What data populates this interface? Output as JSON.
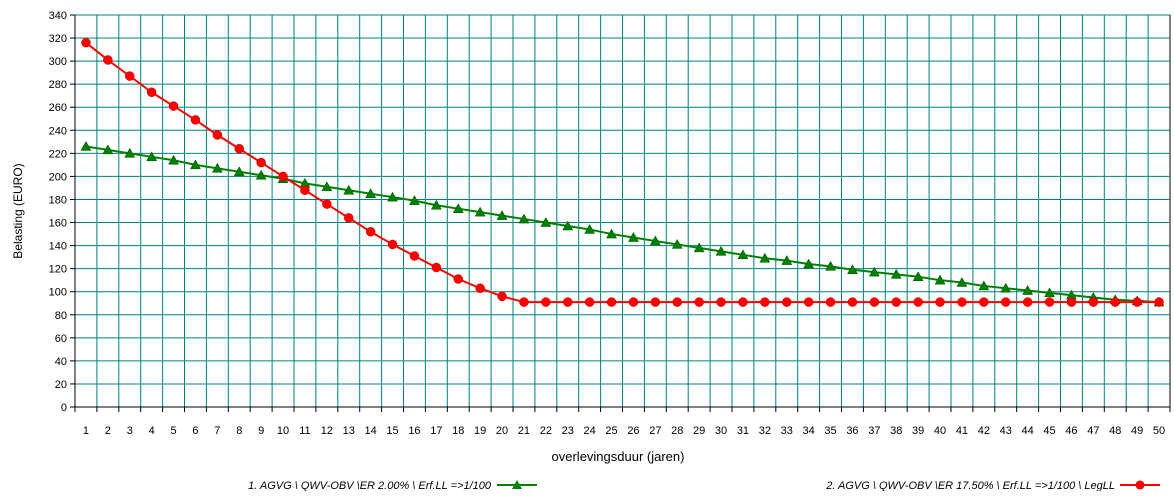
{
  "chart_data": {
    "type": "line",
    "xlabel": "overlevingsduur (jaren)",
    "ylabel": "Belasting (EURO)",
    "xlim": [
      0,
      50
    ],
    "ylim": [
      0,
      340
    ],
    "yticks": [
      0,
      20,
      40,
      60,
      80,
      100,
      120,
      140,
      160,
      180,
      200,
      220,
      240,
      260,
      280,
      300,
      320,
      340
    ],
    "xticks": [
      1,
      2,
      3,
      4,
      5,
      6,
      7,
      8,
      9,
      10,
      11,
      12,
      13,
      14,
      15,
      16,
      17,
      18,
      19,
      20,
      21,
      22,
      23,
      24,
      25,
      26,
      27,
      28,
      29,
      30,
      31,
      32,
      33,
      34,
      35,
      36,
      37,
      38,
      39,
      40,
      41,
      42,
      43,
      44,
      45,
      46,
      47,
      48,
      49,
      50
    ],
    "grid": true,
    "legend_position": "bottom",
    "background": "#ffffff",
    "grid_color": "#008080",
    "series": [
      {
        "name": "1. AGVG \\ QWV-OBV \\ER 2.00% \\ Erf.LL =>1/100",
        "marker": "triangle",
        "color": "#008000",
        "x": [
          1,
          2,
          3,
          4,
          5,
          6,
          7,
          8,
          9,
          10,
          11,
          12,
          13,
          14,
          15,
          16,
          17,
          18,
          19,
          20,
          21,
          22,
          23,
          24,
          25,
          26,
          27,
          28,
          29,
          30,
          31,
          32,
          33,
          34,
          35,
          36,
          37,
          38,
          39,
          40,
          41,
          42,
          43,
          44,
          45,
          46,
          47,
          48,
          49,
          50
        ],
        "values": [
          226,
          223,
          220,
          217,
          214,
          210,
          207,
          204,
          201,
          198,
          194,
          191,
          188,
          185,
          182,
          179,
          175,
          172,
          169,
          166,
          163,
          160,
          157,
          154,
          150,
          147,
          144,
          141,
          138,
          135,
          132,
          129,
          127,
          124,
          122,
          119,
          117,
          115,
          113,
          110,
          108,
          105,
          103,
          101,
          99,
          97,
          95,
          93,
          92,
          91
        ]
      },
      {
        "name": "2. AGVG \\ QWV-OBV \\ER 17.50% \\ Erf.LL =>1/100 \\ LegLL",
        "marker": "circle",
        "color": "#ff0000",
        "x": [
          1,
          2,
          3,
          4,
          5,
          6,
          7,
          8,
          9,
          10,
          11,
          12,
          13,
          14,
          15,
          16,
          17,
          18,
          19,
          20,
          21,
          22,
          23,
          24,
          25,
          26,
          27,
          28,
          29,
          30,
          31,
          32,
          33,
          34,
          35,
          36,
          37,
          38,
          39,
          40,
          41,
          42,
          43,
          44,
          45,
          46,
          47,
          48,
          49,
          50
        ],
        "values": [
          316,
          301,
          287,
          273,
          261,
          249,
          236,
          224,
          212,
          200,
          188,
          176,
          164,
          152,
          141,
          131,
          121,
          111,
          103,
          96,
          91,
          91,
          91,
          91,
          91,
          91,
          91,
          91,
          91,
          91,
          91,
          91,
          91,
          91,
          91,
          91,
          91,
          91,
          91,
          91,
          91,
          91,
          91,
          91,
          91,
          91,
          91,
          91,
          91,
          91
        ]
      }
    ]
  }
}
